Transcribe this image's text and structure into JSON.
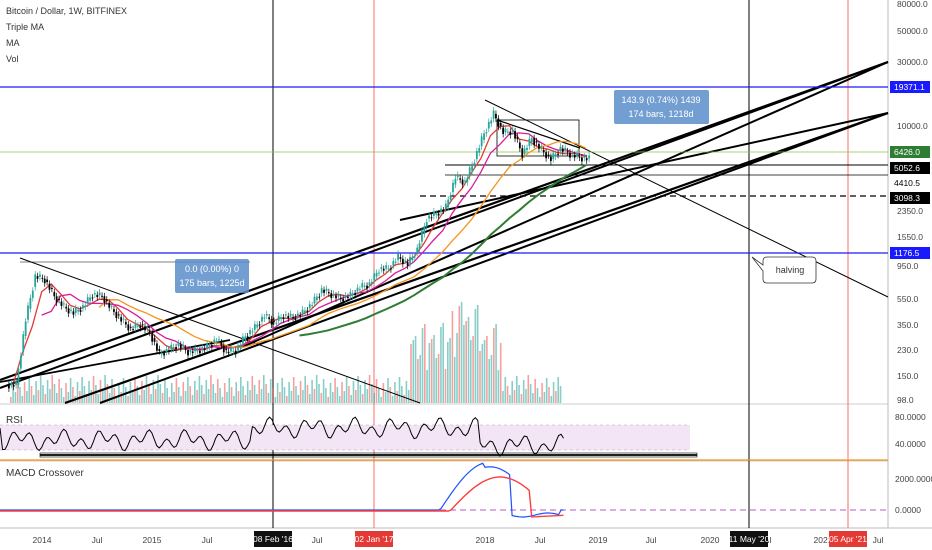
{
  "header": {
    "title": "Bitcoin / Dollar, 1W, BITFINEX",
    "indicators": [
      "Triple MA",
      "MA",
      "Vol"
    ]
  },
  "colors": {
    "up_candle": "#26a69a",
    "down_candle": "#000000",
    "ma_red": "#e53935",
    "ma_magenta": "#d81b9a",
    "ma_orange": "#f7931a",
    "ma_green": "#2e7d32",
    "trend_blue": "#1a1aff",
    "rsi_fill": "#f3e5f5",
    "macd_blue": "#1e50ff",
    "macd_red": "#ff3d3d",
    "vertical_red": "#ff6b6b",
    "accent_box": "#5b8dc9"
  },
  "chart_data": {
    "type": "line",
    "title": "Bitcoin / Dollar, 1W, BITFINEX",
    "y_scale": "log",
    "price_axis_ticks": [
      "80000.0",
      "50000.0",
      "30000.0",
      "10000.0",
      "4410.5",
      "2350.0",
      "1550.0",
      "950.0",
      "550.0",
      "350.0",
      "230.0",
      "150.0",
      "98.0"
    ],
    "x_axis_ticks": [
      "2014",
      "Jul",
      "2015",
      "Jul",
      "Jul",
      "2018",
      "Jul",
      "2019",
      "Jul",
      "2020",
      "Jul",
      "2021",
      "Jul"
    ],
    "x_axis_badges": [
      {
        "label": "08 Feb '16",
        "style": "black"
      },
      {
        "label": "02 Jan '17",
        "style": "red"
      },
      {
        "label": "11 May '20",
        "style": "black"
      },
      {
        "label": "05 Apr '21",
        "style": "red"
      }
    ],
    "price_labels": [
      {
        "value": "19371.1",
        "style": "blue"
      },
      {
        "value": "6426.0",
        "style": "green"
      },
      {
        "value": "5052.6",
        "style": "black"
      },
      {
        "value": "4410.5",
        "style": "plain"
      },
      {
        "value": "3098.3",
        "style": "black"
      },
      {
        "value": "1176.5",
        "style": "blue"
      }
    ],
    "measure_boxes": [
      {
        "line1": "0.0 (0.00%) 0",
        "line2": "175 bars, 1225d"
      },
      {
        "line1": "143.9 (0.74%) 1439",
        "line2": "174 bars, 1218d"
      }
    ],
    "callout": "halving",
    "rsi": {
      "label": "RSI",
      "ticks": [
        "80.0000",
        "40.0000"
      ]
    },
    "macd": {
      "label": "MACD Crossover",
      "ticks": [
        "2000.0000",
        "0.0000"
      ]
    },
    "price_series": [
      [
        "2013-10",
        130
      ],
      [
        "2013-11",
        400
      ],
      [
        "2013-12",
        850
      ],
      [
        "2014-01",
        800
      ],
      [
        "2014-02",
        600
      ],
      [
        "2014-03",
        500
      ],
      [
        "2014-04",
        450
      ],
      [
        "2014-05",
        500
      ],
      [
        "2014-06",
        620
      ],
      [
        "2014-07",
        600
      ],
      [
        "2014-08",
        480
      ],
      [
        "2014-09",
        400
      ],
      [
        "2014-10",
        340
      ],
      [
        "2014-11",
        370
      ],
      [
        "2014-12",
        320
      ],
      [
        "2015-01",
        220
      ],
      [
        "2015-02",
        240
      ],
      [
        "2015-03",
        260
      ],
      [
        "2015-04",
        230
      ],
      [
        "2015-05",
        235
      ],
      [
        "2015-06",
        250
      ],
      [
        "2015-07",
        285
      ],
      [
        "2015-08",
        230
      ],
      [
        "2015-09",
        235
      ],
      [
        "2015-10",
        300
      ],
      [
        "2015-11",
        350
      ],
      [
        "2015-12",
        430
      ],
      [
        "2016-01",
        380
      ],
      [
        "2016-02",
        430
      ],
      [
        "2016-03",
        415
      ],
      [
        "2016-04",
        450
      ],
      [
        "2016-05",
        530
      ],
      [
        "2016-06",
        670
      ],
      [
        "2016-07",
        620
      ],
      [
        "2016-08",
        575
      ],
      [
        "2016-09",
        610
      ],
      [
        "2016-10",
        700
      ],
      [
        "2016-11",
        740
      ],
      [
        "2016-12",
        960
      ],
      [
        "2017-01",
        970
      ],
      [
        "2017-02",
        1180
      ],
      [
        "2017-03",
        1050
      ],
      [
        "2017-04",
        1350
      ],
      [
        "2017-05",
        2300
      ],
      [
        "2017-06",
        2500
      ],
      [
        "2017-07",
        2800
      ],
      [
        "2017-08",
        4700
      ],
      [
        "2017-09",
        4300
      ],
      [
        "2017-10",
        6400
      ],
      [
        "2017-11",
        10000
      ],
      [
        "2017-12",
        14000
      ],
      [
        "2018-01",
        10200
      ],
      [
        "2018-02",
        10400
      ],
      [
        "2018-03",
        7000
      ],
      [
        "2018-04",
        9200
      ],
      [
        "2018-05",
        7500
      ],
      [
        "2018-06",
        6400
      ],
      [
        "2018-07",
        7700
      ],
      [
        "2018-08",
        7000
      ],
      [
        "2018-09",
        6600
      ],
      [
        "2018-10",
        6426
      ]
    ]
  }
}
